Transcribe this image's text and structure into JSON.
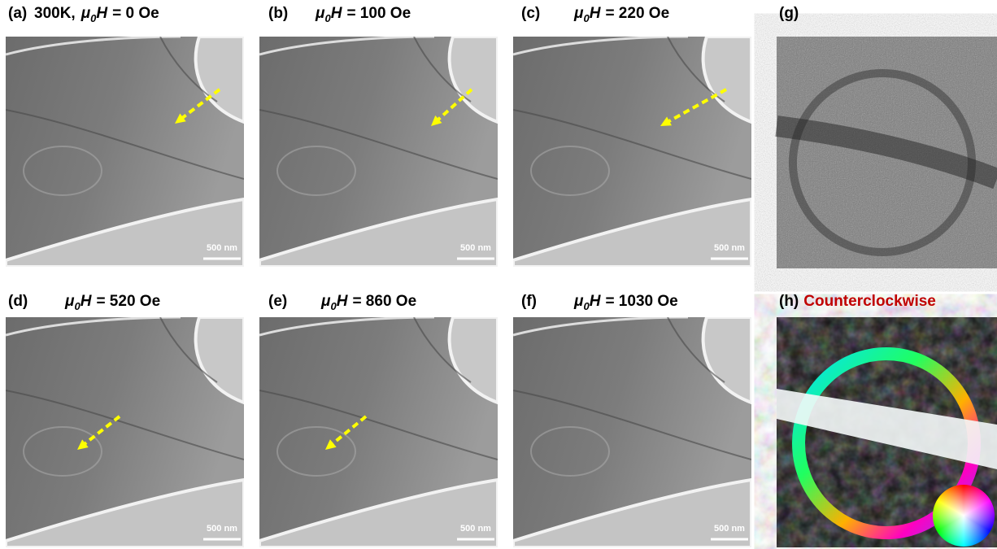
{
  "panels": [
    {
      "label": "(a)",
      "prefix": "300K,",
      "symbol": "μ",
      "subscript": "0",
      "variable": "H",
      "value": "= 0 Oe",
      "scale_bar": "500 nm"
    },
    {
      "label": "(b)",
      "symbol": "μ",
      "subscript": "0",
      "variable": "H",
      "value": "= 100 Oe",
      "scale_bar": "500 nm"
    },
    {
      "label": "(c)",
      "symbol": "μ",
      "subscript": "0",
      "variable": "H",
      "value": "= 220 Oe",
      "scale_bar": "500 nm"
    },
    {
      "label": "(d)",
      "symbol": "μ",
      "subscript": "0",
      "variable": "H",
      "value": "= 520 Oe",
      "scale_bar": "500 nm"
    },
    {
      "label": "(e)",
      "symbol": "μ",
      "subscript": "0",
      "variable": "H",
      "value": "= 860 Oe",
      "scale_bar": "500 nm"
    },
    {
      "label": "(f)",
      "symbol": "μ",
      "subscript": "0",
      "variable": "H",
      "value": "= 1030 Oe",
      "scale_bar": "500 nm"
    }
  ],
  "panel_g": {
    "label": "(g)"
  },
  "panel_h": {
    "label": "(h)",
    "title": "Counterclockwise"
  }
}
